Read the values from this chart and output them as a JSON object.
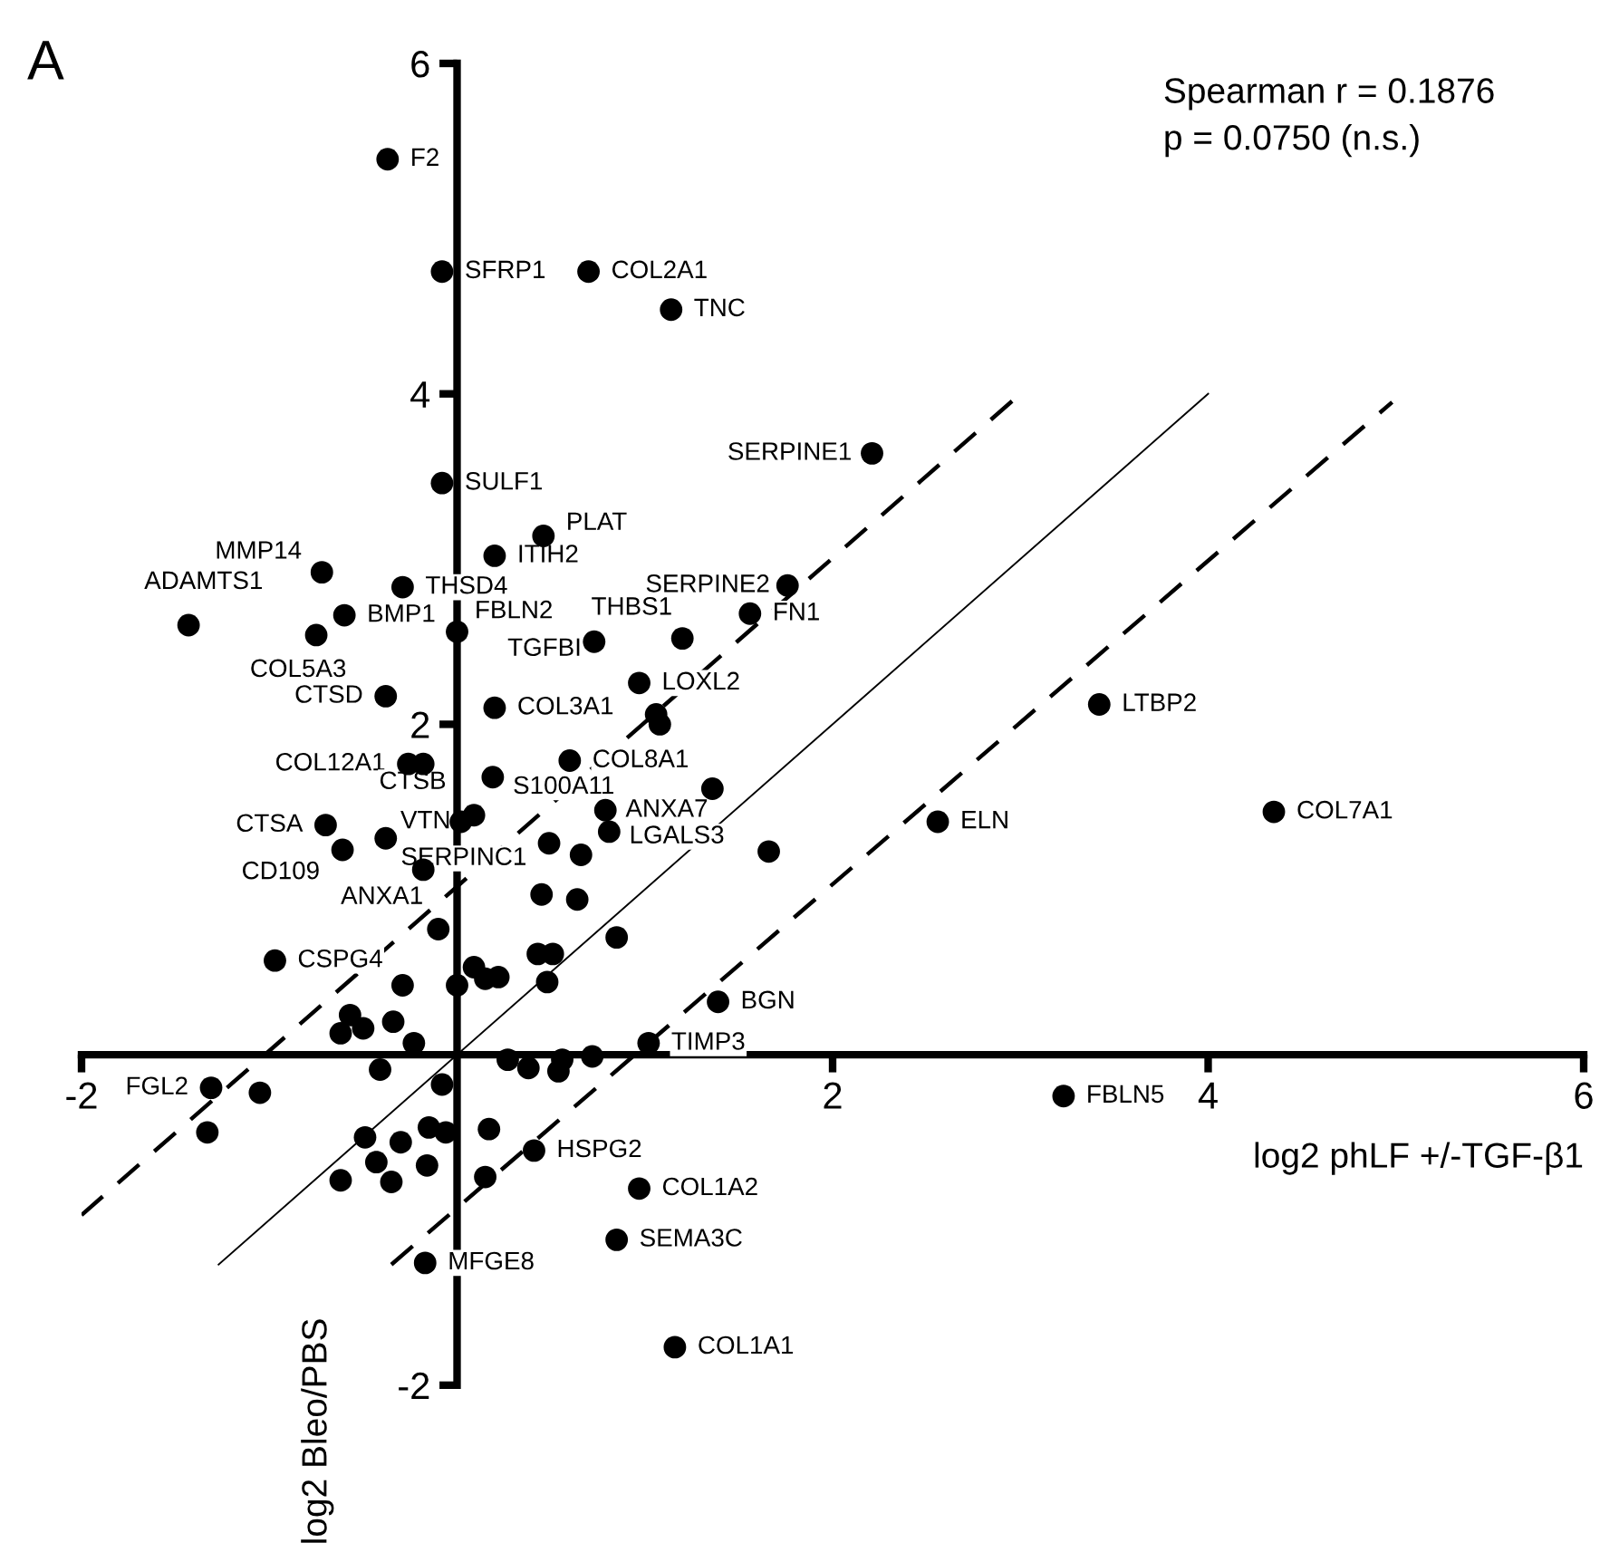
{
  "chart_data": {
    "type": "scatter",
    "title": "A",
    "xlabel": "log2 phLF +/-TGF-β1",
    "ylabel": "log2 Bleo/PBS",
    "annotations": [
      "Spearman r = 0.1876",
      "p = 0.0750 (n.s.)"
    ],
    "xlim": [
      -2,
      6
    ],
    "ylim": [
      -2,
      6
    ],
    "xticks": [
      -2,
      2,
      4,
      6
    ],
    "yticks": [
      -2,
      2,
      4,
      6
    ],
    "marker": "circle",
    "series": [
      {
        "color": "#000000",
        "x": [
          -0.08,
          0.19,
          0.41,
          0.85,
          -0.17,
          1.06,
          1.08,
          1.36,
          1.66,
          0.49,
          0.66,
          -0.18,
          0.45,
          0.64,
          -0.1,
          0.85,
          0.43,
          0.51,
          0.09,
          0.15,
          0.22,
          0.48,
          -0.29,
          0.0,
          -0.57,
          -0.34,
          -0.62,
          -0.5,
          -0.23,
          -0.41,
          -0.08,
          0.27,
          0.38,
          0.54,
          0.56,
          0.72,
          -1.05,
          -1.33,
          -0.49,
          -0.3,
          -0.15,
          -0.06,
          0.17,
          -0.43,
          -0.16,
          -0.62,
          -0.35,
          0.15
        ],
        "values": [
          4.74,
          1.68,
          -0.58,
          -1.12,
          -1.26,
          2.06,
          2.0,
          1.61,
          1.23,
          1.28,
          1.21,
          1.76,
          0.97,
          0.94,
          0.76,
          0.71,
          0.61,
          0.61,
          0.53,
          0.46,
          0.47,
          0.44,
          0.42,
          0.42,
          0.24,
          0.2,
          0.13,
          0.16,
          0.07,
          -0.09,
          -0.18,
          -0.03,
          -0.08,
          -0.1,
          -0.03,
          -0.01,
          -0.23,
          -0.47,
          -0.5,
          -0.53,
          -0.44,
          -0.47,
          -0.45,
          -0.65,
          -0.67,
          -0.76,
          -0.77,
          -0.74
        ],
        "value_labels": [
          "SFRP1",
          "S100A11",
          "HSPG2",
          "SEMA3C",
          "MFGE8",
          null,
          null,
          null,
          null,
          null,
          null,
          null,
          null,
          null,
          null,
          null,
          null,
          null,
          null,
          null,
          null,
          null,
          null,
          null,
          null,
          null,
          null,
          null,
          null,
          null,
          null,
          null,
          null,
          null,
          null,
          null,
          null,
          null,
          null,
          null,
          null,
          null,
          null,
          null,
          null,
          null,
          null,
          null
        ]
      },
      {
        "color": "#000000",
        "x": [
          0.7,
          -0.75,
          0.2,
          -0.26,
          0.6,
          4.35,
          0.97,
          1.16
        ],
        "values": [
          4.74,
          2.54,
          2.1,
          1.76,
          1.78,
          1.47,
          -0.81,
          -1.77
        ],
        "value_labels": [
          "COL2A1",
          "COL5A3",
          "COL3A1",
          "COL12A1",
          "COL8A1",
          "COL7A1",
          "COL1A2",
          "COL1A1"
        ]
      },
      {
        "color": "#000000",
        "x": [
          -0.37,
          -0.08,
          0.46,
          0.2,
          -0.72,
          -1.43,
          -0.6,
          1.76,
          2.21,
          0.97,
          -0.38,
          0.09,
          -0.7,
          -0.61,
          -0.38,
          1.02
        ],
        "values": [
          5.42,
          3.46,
          3.14,
          3.02,
          2.92,
          2.6,
          2.66,
          2.84,
          3.64,
          2.25,
          2.17,
          1.45,
          1.39,
          1.24,
          1.31,
          0.07
        ],
        "value_labels": [
          "F2",
          "SULF1",
          "PLAT",
          "ITIH2",
          "MMP14",
          "ADAMTS1",
          "BMP1",
          "SERPINE2",
          "SERPINE1",
          "LOXL2",
          "CTSD",
          "CTSB",
          "CTSA",
          "CD109",
          "SERPINC1",
          "TIMP3"
        ]
      },
      {
        "color": "#000000",
        "x": [
          1.14,
          -0.29,
          0.0,
          0.73,
          1.2,
          1.56,
          3.42,
          2.56,
          0.02,
          -1.31,
          3.23
        ],
        "values": [
          4.51,
          2.83,
          2.56,
          2.5,
          2.52,
          2.67,
          2.12,
          1.41,
          1.41,
          -0.2,
          -0.25
        ],
        "value_labels": [
          "TNC",
          "THSD4",
          "FBLN2",
          "TGFBI",
          "THBS1",
          "FN1",
          "LTBP2",
          "ELN",
          "VTN",
          "FGL2",
          "FBLN5"
        ]
      },
      {
        "color": "#000000",
        "x": [
          0.79,
          0.81,
          -0.18,
          -0.97
        ],
        "values": [
          1.48,
          1.35,
          1.12,
          0.57
        ],
        "value_labels": [
          "ANXA7",
          "LGALS3",
          "ANXA1",
          "CSPG4"
        ]
      },
      {
        "color": "#000000",
        "x": [
          1.39
        ],
        "values": [
          0.32
        ],
        "value_labels": [
          "BGN"
        ]
      },
      {
        "type": "line",
        "marker": "none",
        "color": "#000000",
        "line_style": "solid",
        "x": [
          -1.27,
          4.0
        ],
        "values": [
          -1.27,
          4.0
        ]
      },
      {
        "type": "line",
        "marker": "none",
        "color": "#000000",
        "line_style": "dashed",
        "x": [
          -2.0,
          3.0
        ],
        "values": [
          -0.97,
          4.0
        ]
      },
      {
        "type": "line",
        "marker": "none",
        "color": "#000000",
        "line_style": "dashed",
        "x": [
          -0.35,
          4.98
        ],
        "values": [
          -1.27,
          3.95
        ]
      }
    ]
  }
}
